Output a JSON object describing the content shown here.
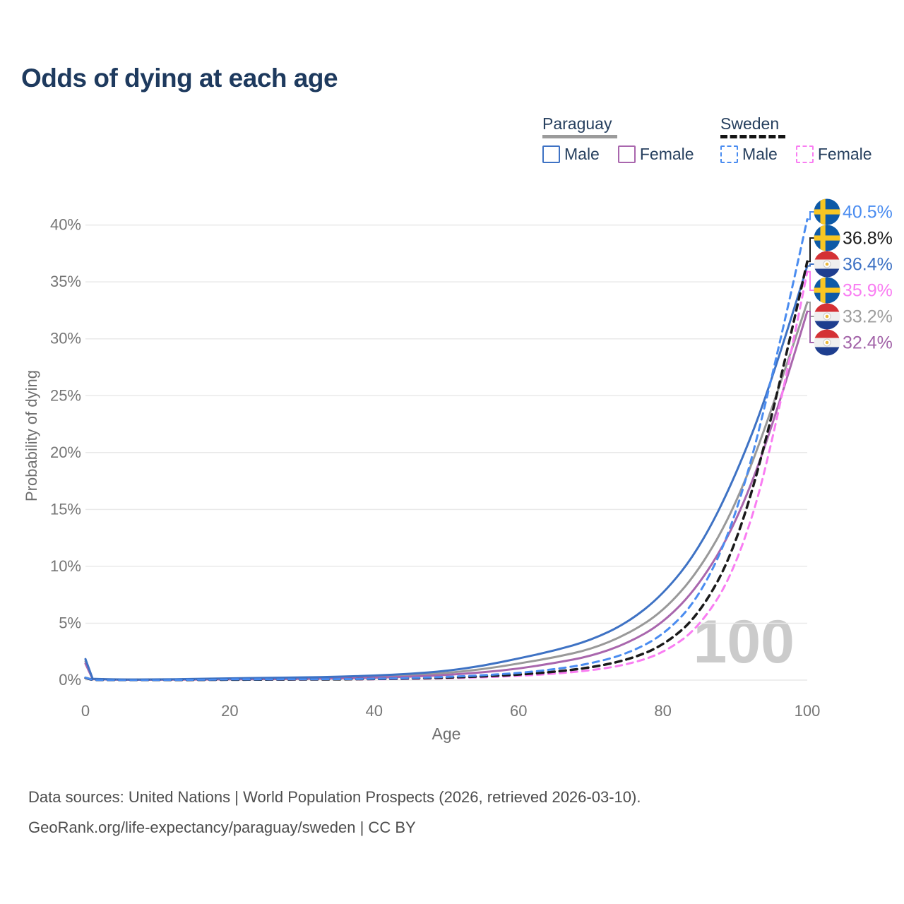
{
  "title": "Odds of dying at each age",
  "legend": {
    "groups": [
      {
        "country": "Paraguay",
        "underline_style": "solid",
        "underline_color": "#9b9b9b",
        "underline_width": 106,
        "items": [
          {
            "label": "Male",
            "color": "#3e72c4",
            "dash": false
          },
          {
            "label": "Female",
            "color": "#a966ad",
            "dash": false
          }
        ]
      },
      {
        "country": "Sweden",
        "underline_style": "dashed",
        "underline_color": "#141414",
        "underline_width": 92,
        "items": [
          {
            "label": "Male",
            "color": "#4a8cf0",
            "dash": true
          },
          {
            "label": "Female",
            "color": "#f97df2",
            "dash": true
          }
        ]
      }
    ]
  },
  "axes": {
    "y_title": "Probability of dying",
    "x_title": "Age",
    "y_tick_labels": [
      "0%",
      "5%",
      "10%",
      "15%",
      "20%",
      "25%",
      "30%",
      "35%",
      "40%"
    ],
    "x_tick_labels": [
      "0",
      "20",
      "40",
      "60",
      "80",
      "100"
    ]
  },
  "watermark": "100",
  "chart_data": {
    "type": "line",
    "title": "Odds of dying at each age",
    "xlabel": "Age",
    "ylabel": "Probability of dying",
    "xlim": [
      0,
      100
    ],
    "ylim_pct": [
      0,
      40
    ],
    "x_ticks": [
      0,
      20,
      40,
      60,
      80,
      100
    ],
    "y_ticks_pct": [
      0,
      5,
      10,
      15,
      20,
      25,
      30,
      35,
      40
    ],
    "grid": true,
    "legend_position": "top-right",
    "hover_age_watermark": "100",
    "ages": [
      0,
      1,
      5,
      10,
      15,
      20,
      25,
      30,
      35,
      40,
      45,
      50,
      55,
      60,
      65,
      70,
      75,
      80,
      85,
      90,
      95,
      100
    ],
    "series": [
      {
        "name": "Paraguay Both sexes",
        "country": "Paraguay",
        "sex": "both",
        "style": "solid",
        "color": "#999999",
        "values_pct": [
          1.65,
          0.1,
          0.04,
          0.05,
          0.08,
          0.11,
          0.14,
          0.17,
          0.22,
          0.3,
          0.42,
          0.62,
          0.95,
          1.45,
          2.0,
          2.7,
          4.0,
          6.0,
          9.6,
          15.2,
          23.5,
          33.2
        ],
        "end_value_pct": 33.2
      },
      {
        "name": "Paraguay Female",
        "country": "Paraguay",
        "sex": "female",
        "style": "solid",
        "color": "#a966ad",
        "values_pct": [
          1.45,
          0.09,
          0.03,
          0.04,
          0.05,
          0.07,
          0.09,
          0.11,
          0.15,
          0.21,
          0.3,
          0.45,
          0.68,
          1.0,
          1.5,
          2.1,
          3.2,
          5.0,
          8.3,
          13.6,
          21.8,
          32.4
        ],
        "end_value_pct": 32.4
      },
      {
        "name": "Paraguay Male",
        "country": "Paraguay",
        "sex": "male",
        "style": "solid",
        "color": "#3e72c4",
        "values_pct": [
          1.85,
          0.12,
          0.05,
          0.06,
          0.1,
          0.16,
          0.2,
          0.24,
          0.3,
          0.4,
          0.55,
          0.8,
          1.25,
          1.9,
          2.6,
          3.5,
          5.0,
          7.5,
          11.5,
          17.8,
          26.0,
          36.4
        ],
        "end_value_pct": 36.4
      },
      {
        "name": "Sweden Female",
        "country": "Sweden",
        "sex": "female",
        "style": "dashed",
        "color": "#f97df2",
        "values_pct": [
          0.18,
          0.01,
          0.01,
          0.01,
          0.02,
          0.03,
          0.04,
          0.05,
          0.06,
          0.08,
          0.11,
          0.17,
          0.25,
          0.38,
          0.56,
          0.85,
          1.35,
          2.35,
          4.6,
          9.6,
          19.8,
          35.9
        ],
        "end_value_pct": 35.9
      },
      {
        "name": "Sweden Both sexes",
        "country": "Sweden",
        "sex": "both",
        "style": "dashed",
        "color": "#1a1a1a",
        "values_pct": [
          0.2,
          0.02,
          0.01,
          0.01,
          0.02,
          0.04,
          0.05,
          0.06,
          0.07,
          0.1,
          0.14,
          0.22,
          0.33,
          0.48,
          0.73,
          1.1,
          1.75,
          3.0,
          5.7,
          11.5,
          22.5,
          36.8
        ],
        "end_value_pct": 36.8
      },
      {
        "name": "Sweden Male",
        "country": "Sweden",
        "sex": "male",
        "style": "dashed",
        "color": "#4a8cf0",
        "values_pct": [
          0.22,
          0.02,
          0.01,
          0.01,
          0.03,
          0.06,
          0.07,
          0.08,
          0.09,
          0.12,
          0.18,
          0.28,
          0.42,
          0.62,
          0.95,
          1.45,
          2.3,
          3.9,
          7.2,
          14.0,
          26.0,
          40.5
        ],
        "end_value_pct": 40.5
      }
    ],
    "end_labels": [
      {
        "text": "40.5%",
        "flag": "sweden",
        "color": "#4a8cf0",
        "series": "Sweden Male"
      },
      {
        "text": "36.8%",
        "flag": "sweden",
        "color": "#1a1a1a",
        "series": "Sweden Both sexes"
      },
      {
        "text": "36.4%",
        "flag": "paraguay",
        "color": "#3e72c4",
        "series": "Paraguay Male"
      },
      {
        "text": "35.9%",
        "flag": "sweden",
        "color": "#f97df2",
        "series": "Sweden Female"
      },
      {
        "text": "33.2%",
        "flag": "paraguay",
        "color": "#9e9e9e",
        "series": "Paraguay Both sexes"
      },
      {
        "text": "32.4%",
        "flag": "paraguay",
        "color": "#a263a8",
        "series": "Paraguay Female"
      }
    ]
  },
  "footer": {
    "line1": "Data sources: United Nations | World Population Prospects (2026, retrieved 2026-03-10).",
    "line2": "GeoRank.org/life-expectancy/paraguay/sweden | CC BY"
  }
}
